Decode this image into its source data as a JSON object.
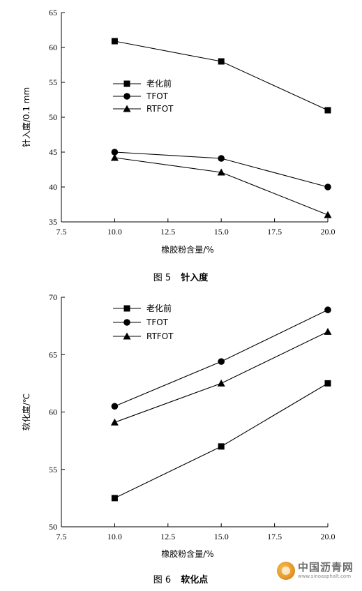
{
  "chart_data": [
    {
      "type": "line",
      "caption": {
        "number": "图 5",
        "title": "针入度"
      },
      "xlabel": "橡胶粉含量/%",
      "ylabel": "针入度/0.1 mm",
      "xlim": [
        7.5,
        20.0
      ],
      "ylim": [
        35,
        65
      ],
      "xticks": [
        7.5,
        10.0,
        12.5,
        15.0,
        17.5,
        20.0
      ],
      "xtick_labels": [
        "7.5",
        "10.0",
        "12.5",
        "15.0",
        "17.5",
        "20.0"
      ],
      "yticks": [
        35,
        40,
        45,
        50,
        55,
        60,
        65
      ],
      "ytick_labels": [
        "35",
        "40",
        "45",
        "50",
        "55",
        "60",
        "65"
      ],
      "grid": false,
      "legend_position": "center-left",
      "x": [
        10.0,
        15.0,
        20.0
      ],
      "series": [
        {
          "name": "老化前",
          "marker": "square",
          "values": [
            60.9,
            58.0,
            51.0
          ]
        },
        {
          "name": "TFOT",
          "marker": "circle",
          "values": [
            45.0,
            44.1,
            40.0
          ]
        },
        {
          "name": "RTFOT",
          "marker": "triangle",
          "values": [
            44.2,
            42.1,
            36.0
          ]
        }
      ]
    },
    {
      "type": "line",
      "caption": {
        "number": "图 6",
        "title": "软化点"
      },
      "xlabel": "橡胶粉含量/%",
      "ylabel": "软化度/℃",
      "xlim": [
        7.5,
        20.0
      ],
      "ylim": [
        50,
        70
      ],
      "xticks": [
        7.5,
        10.0,
        12.5,
        15.0,
        17.5,
        20.0
      ],
      "xtick_labels": [
        "7.5",
        "10.0",
        "12.5",
        "15.0",
        "17.5",
        "20.0"
      ],
      "yticks": [
        50,
        55,
        60,
        65,
        70
      ],
      "ytick_labels": [
        "50",
        "55",
        "60",
        "65",
        "70"
      ],
      "grid": false,
      "legend_position": "top-left",
      "x": [
        10.0,
        15.0,
        20.0
      ],
      "series": [
        {
          "name": "老化前",
          "marker": "square",
          "values": [
            52.5,
            57.0,
            62.5
          ]
        },
        {
          "name": "TFOT",
          "marker": "circle",
          "values": [
            60.5,
            64.4,
            68.9
          ]
        },
        {
          "name": "RTFOT",
          "marker": "triangle",
          "values": [
            59.1,
            62.5,
            67.0
          ]
        }
      ]
    }
  ],
  "watermark": {
    "logo_icon": "sun-logo-icon",
    "main_text": "中国沥青网",
    "sub_text": "www.sinoasphalt.com"
  }
}
